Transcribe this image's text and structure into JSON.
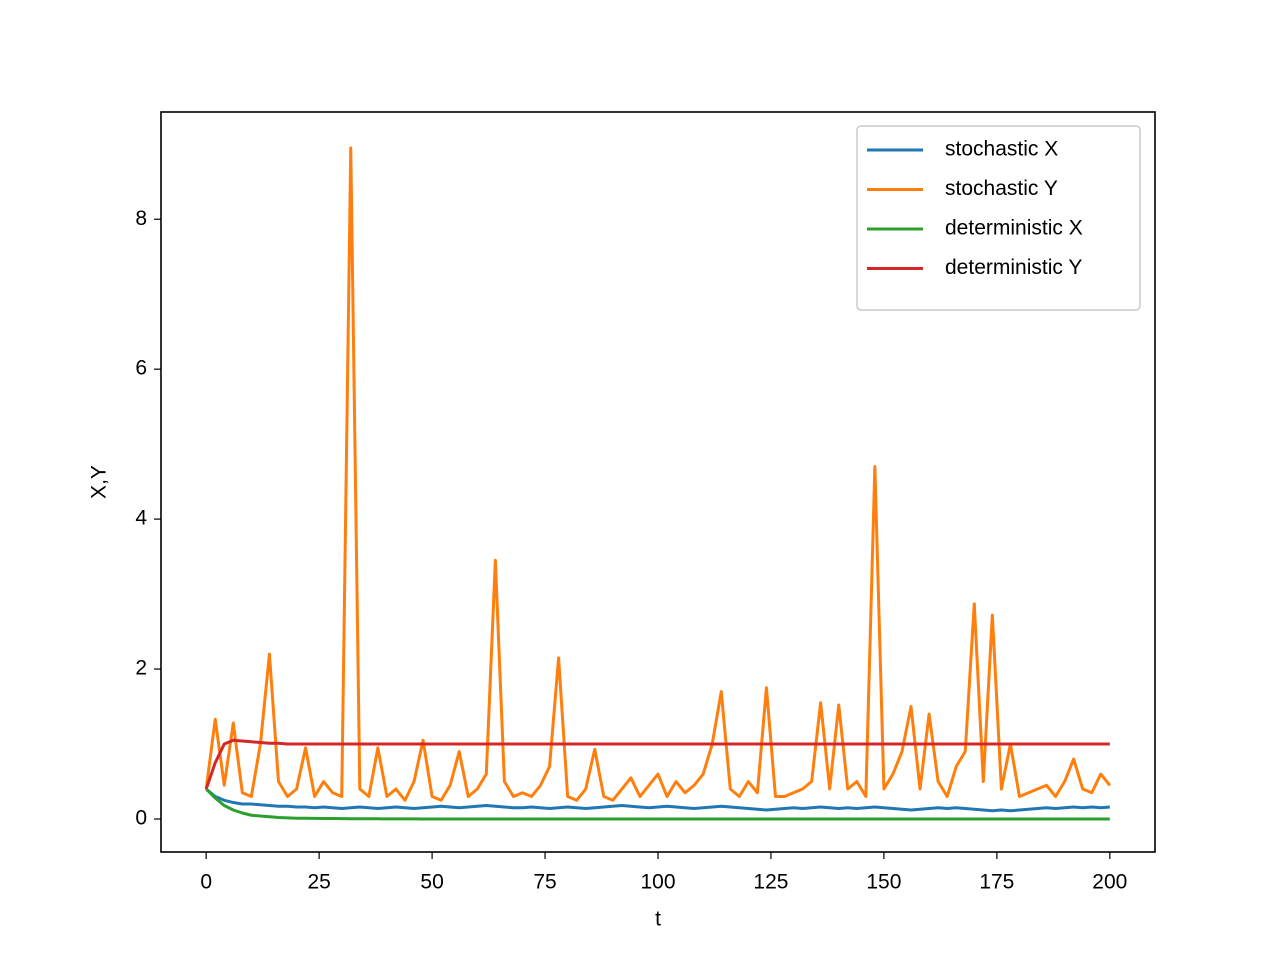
{
  "chart_data": {
    "type": "line",
    "xlabel": "t",
    "ylabel": "X,Y",
    "x": [
      0,
      2,
      4,
      6,
      8,
      10,
      12,
      14,
      16,
      18,
      20,
      22,
      24,
      26,
      28,
      30,
      32,
      34,
      36,
      38,
      40,
      42,
      44,
      46,
      48,
      50,
      52,
      54,
      56,
      58,
      60,
      62,
      64,
      66,
      68,
      70,
      72,
      74,
      76,
      78,
      80,
      82,
      84,
      86,
      88,
      90,
      92,
      94,
      96,
      98,
      100,
      102,
      104,
      106,
      108,
      110,
      112,
      114,
      116,
      118,
      120,
      122,
      124,
      126,
      128,
      130,
      132,
      134,
      136,
      138,
      140,
      142,
      144,
      146,
      148,
      150,
      152,
      154,
      156,
      158,
      160,
      162,
      164,
      166,
      168,
      170,
      172,
      174,
      176,
      178,
      180,
      182,
      184,
      186,
      188,
      190,
      192,
      194,
      196,
      198,
      200
    ],
    "series": [
      {
        "name": "stochastic X",
        "color": "#1f77b4",
        "values": [
          0.4,
          0.3,
          0.25,
          0.22,
          0.2,
          0.2,
          0.19,
          0.18,
          0.17,
          0.17,
          0.16,
          0.16,
          0.15,
          0.16,
          0.15,
          0.14,
          0.15,
          0.16,
          0.15,
          0.14,
          0.15,
          0.16,
          0.15,
          0.14,
          0.15,
          0.16,
          0.17,
          0.16,
          0.15,
          0.16,
          0.17,
          0.18,
          0.17,
          0.16,
          0.15,
          0.15,
          0.16,
          0.15,
          0.14,
          0.15,
          0.16,
          0.15,
          0.14,
          0.15,
          0.16,
          0.17,
          0.18,
          0.17,
          0.16,
          0.15,
          0.16,
          0.17,
          0.16,
          0.15,
          0.14,
          0.15,
          0.16,
          0.17,
          0.16,
          0.15,
          0.14,
          0.13,
          0.12,
          0.13,
          0.14,
          0.15,
          0.14,
          0.15,
          0.16,
          0.15,
          0.14,
          0.15,
          0.14,
          0.15,
          0.16,
          0.15,
          0.14,
          0.13,
          0.12,
          0.13,
          0.14,
          0.15,
          0.14,
          0.15,
          0.14,
          0.13,
          0.12,
          0.11,
          0.12,
          0.11,
          0.12,
          0.13,
          0.14,
          0.15,
          0.14,
          0.15,
          0.16,
          0.15,
          0.16,
          0.15,
          0.16
        ]
      },
      {
        "name": "stochastic Y",
        "color": "#ff7f0e",
        "values": [
          0.4,
          1.33,
          0.45,
          1.28,
          0.35,
          0.3,
          1.0,
          2.2,
          0.5,
          0.3,
          0.4,
          0.95,
          0.3,
          0.5,
          0.35,
          0.3,
          8.95,
          0.4,
          0.3,
          0.95,
          0.3,
          0.4,
          0.25,
          0.5,
          1.05,
          0.3,
          0.25,
          0.45,
          0.9,
          0.3,
          0.4,
          0.6,
          3.45,
          0.5,
          0.3,
          0.35,
          0.3,
          0.45,
          0.7,
          2.15,
          0.3,
          0.25,
          0.4,
          0.93,
          0.3,
          0.25,
          0.4,
          0.55,
          0.3,
          0.45,
          0.6,
          0.3,
          0.5,
          0.35,
          0.45,
          0.6,
          1.0,
          1.7,
          0.4,
          0.3,
          0.5,
          0.35,
          1.75,
          0.3,
          0.3,
          0.35,
          0.4,
          0.5,
          1.55,
          0.4,
          1.52,
          0.4,
          0.5,
          0.3,
          4.7,
          0.4,
          0.6,
          0.9,
          1.5,
          0.4,
          1.4,
          0.5,
          0.3,
          0.7,
          0.9,
          2.87,
          0.5,
          2.72,
          0.4,
          1.0,
          0.3,
          0.35,
          0.4,
          0.45,
          0.3,
          0.5,
          0.8,
          0.4,
          0.35,
          0.6,
          0.45
        ]
      },
      {
        "name": "deterministic X",
        "color": "#2ca02c",
        "values": [
          0.4,
          0.28,
          0.18,
          0.12,
          0.08,
          0.05,
          0.04,
          0.03,
          0.02,
          0.015,
          0.01,
          0.01,
          0.008,
          0.007,
          0.006,
          0.005,
          0.004,
          0.004,
          0.003,
          0.003,
          0.002,
          0.002,
          0.002,
          0.002,
          0.001,
          0.001,
          0.001,
          0.001,
          0.001,
          0.001,
          0.001,
          0.001,
          0.001,
          0.001,
          0.001,
          0.001,
          0.001,
          0.001,
          0.001,
          0.001,
          0.001,
          0.001,
          0.001,
          0.001,
          0.001,
          0.001,
          0.001,
          0.001,
          0.001,
          0.001,
          0.001,
          0.001,
          0.001,
          0.001,
          0.001,
          0.001,
          0.001,
          0.001,
          0.001,
          0.001,
          0.001,
          0.001,
          0.001,
          0.001,
          0.001,
          0.001,
          0.001,
          0.001,
          0.001,
          0.001,
          0.001,
          0.001,
          0.001,
          0.001,
          0.001,
          0.001,
          0.001,
          0.001,
          0.001,
          0.001,
          0.001,
          0.001,
          0.001,
          0.001,
          0.001,
          0.001,
          0.001,
          0.001,
          0.001,
          0.001,
          0.001,
          0.001,
          0.001,
          0.001,
          0.001,
          0.001,
          0.001,
          0.001,
          0.001,
          0.001,
          0.001
        ]
      },
      {
        "name": "deterministic Y",
        "color": "#d62728",
        "values": [
          0.4,
          0.75,
          1.0,
          1.05,
          1.04,
          1.03,
          1.02,
          1.01,
          1.01,
          1.0,
          1.0,
          1.0,
          1.0,
          1.0,
          1.0,
          1.0,
          1.0,
          1.0,
          1.0,
          1.0,
          1.0,
          1.0,
          1.0,
          1.0,
          1.0,
          1.0,
          1.0,
          1.0,
          1.0,
          1.0,
          1.0,
          1.0,
          1.0,
          1.0,
          1.0,
          1.0,
          1.0,
          1.0,
          1.0,
          1.0,
          1.0,
          1.0,
          1.0,
          1.0,
          1.0,
          1.0,
          1.0,
          1.0,
          1.0,
          1.0,
          1.0,
          1.0,
          1.0,
          1.0,
          1.0,
          1.0,
          1.0,
          1.0,
          1.0,
          1.0,
          1.0,
          1.0,
          1.0,
          1.0,
          1.0,
          1.0,
          1.0,
          1.0,
          1.0,
          1.0,
          1.0,
          1.0,
          1.0,
          1.0,
          1.0,
          1.0,
          1.0,
          1.0,
          1.0,
          1.0,
          1.0,
          1.0,
          1.0,
          1.0,
          1.0,
          1.0,
          1.0,
          1.0,
          1.0,
          1.0,
          1.0,
          1.0,
          1.0,
          1.0,
          1.0,
          1.0,
          1.0,
          1.0,
          1.0,
          1.0,
          1.0
        ]
      }
    ],
    "xlim": [
      -10,
      210
    ],
    "xticks": [
      0,
      25,
      50,
      75,
      100,
      125,
      150,
      175,
      200
    ],
    "ylim": [
      -0.44,
      9.43
    ],
    "yticks": [
      0,
      2,
      4,
      6,
      8
    ],
    "grid": false,
    "legend": "upper right"
  }
}
